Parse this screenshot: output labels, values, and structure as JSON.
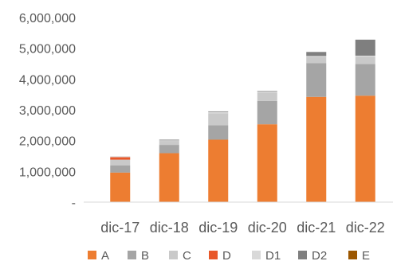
{
  "chart_data": {
    "type": "bar",
    "stacked": true,
    "categories": [
      "dic-17",
      "dic-18",
      "dic-19",
      "dic-20",
      "dic-21",
      "dic-22"
    ],
    "ylim": [
      0,
      6000000
    ],
    "y_ticks": [
      0,
      1000000,
      2000000,
      3000000,
      4000000,
      5000000,
      6000000
    ],
    "y_tick_labels": [
      "-",
      "1,000,000",
      "2,000,000",
      "3,000,000",
      "4,000,000",
      "5,000,000",
      "6,000,000"
    ],
    "grid": false,
    "legend_position": "bottom",
    "series": [
      {
        "name": "A",
        "color": "#ED7D31",
        "values": [
          960000,
          1590000,
          2030000,
          2530000,
          3420000,
          3460000
        ]
      },
      {
        "name": "B",
        "color": "#A5A5A5",
        "values": [
          230000,
          270000,
          470000,
          760000,
          1100000,
          1030000
        ]
      },
      {
        "name": "C",
        "color": "#C9C9C9",
        "values": [
          190000,
          130000,
          390000,
          270000,
          200000,
          240000
        ]
      },
      {
        "name": "D",
        "color": "#E8582A",
        "values": [
          80000,
          0,
          0,
          0,
          0,
          0
        ]
      },
      {
        "name": "D1",
        "color": "#D9D9D9",
        "values": [
          30000,
          20000,
          40000,
          30000,
          30000,
          30000
        ]
      },
      {
        "name": "D2",
        "color": "#7F7F7F",
        "values": [
          0,
          20000,
          20000,
          20000,
          130000,
          520000
        ]
      },
      {
        "name": "E",
        "color": "#9C5700",
        "values": [
          0,
          0,
          0,
          0,
          0,
          0
        ]
      }
    ]
  }
}
